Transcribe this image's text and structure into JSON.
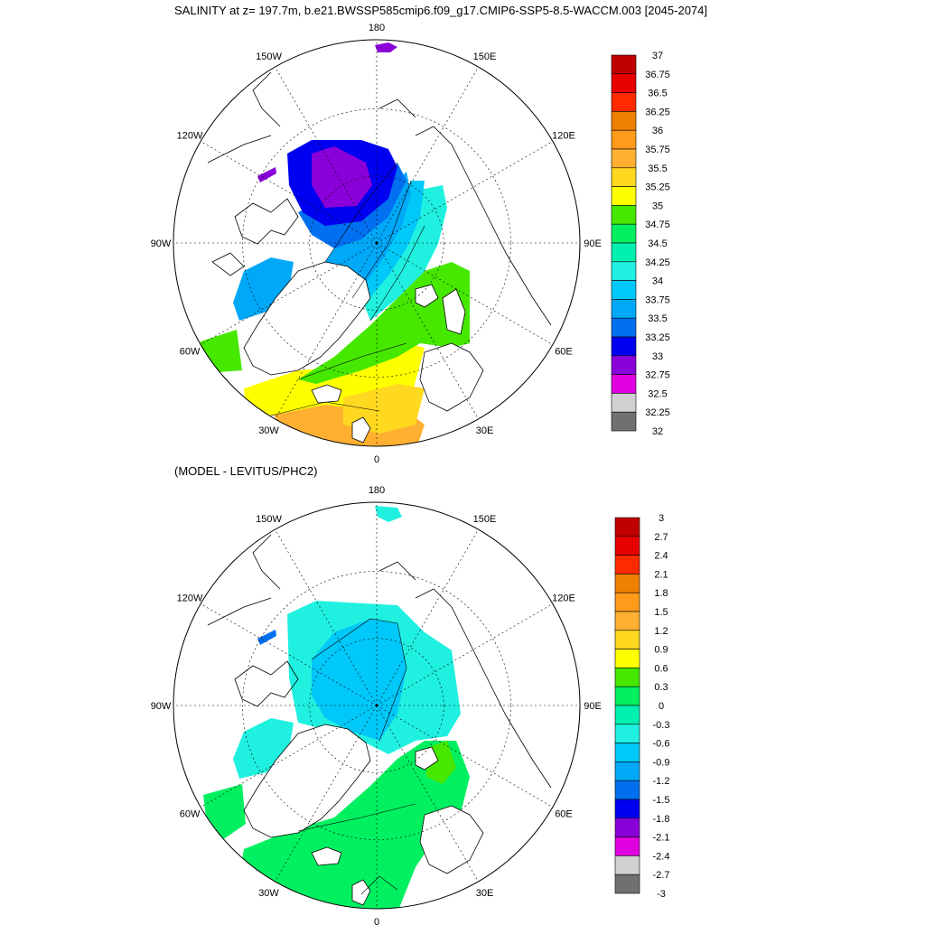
{
  "top_title": "SALINITY at z= 197.7m, b.e21.BWSSP585cmip6.f09_g17.CMIP6-SSP5-8.5-WACCM.003 [2045-2074]",
  "bottom_title": "(MODEL - LEVITUS/PHC2)",
  "longitude_labels": [
    "180",
    "150E",
    "120E",
    "90E",
    "60E",
    "30E",
    "0",
    "30W",
    "60W",
    "90W",
    "120W",
    "150W"
  ],
  "maps": [
    {
      "name": "model-salinity",
      "colorbar": {
        "levels": [
          "37",
          "36.75",
          "36.5",
          "36.25",
          "36",
          "35.75",
          "35.5",
          "35.25",
          "35",
          "34.75",
          "34.5",
          "34.25",
          "34",
          "33.75",
          "33.5",
          "33.25",
          "33",
          "32.75",
          "32.5",
          "32.25",
          "32"
        ],
        "colors": [
          "#c00000",
          "#e80000",
          "#ff2a00",
          "#f08000",
          "#ff9a1a",
          "#ffb030",
          "#ffd820",
          "#ffff00",
          "#46e800",
          "#00f060",
          "#00f0b0",
          "#20f0e0",
          "#00c8f8",
          "#00a8f8",
          "#0070f0",
          "#0000f0",
          "#8a00d8",
          "#e000e0",
          "#d0d0d0",
          "#707070"
        ]
      }
    },
    {
      "name": "model-minus-levitus",
      "colorbar": {
        "levels": [
          "3",
          "2.7",
          "2.4",
          "2.1",
          "1.8",
          "1.5",
          "1.2",
          "0.9",
          "0.6",
          "0.3",
          "0",
          "-0.3",
          "-0.6",
          "-0.9",
          "-1.2",
          "-1.5",
          "-1.8",
          "-2.1",
          "-2.4",
          "-2.7",
          "-3"
        ],
        "colors": [
          "#c00000",
          "#e80000",
          "#ff2a00",
          "#f08000",
          "#ff9a1a",
          "#ffb030",
          "#ffd820",
          "#ffff00",
          "#46e800",
          "#00f060",
          "#00f0b0",
          "#20f0e0",
          "#00c8f8",
          "#00a8f8",
          "#0070f0",
          "#0000f0",
          "#8a00d8",
          "#e000e0",
          "#d0d0d0",
          "#707070"
        ]
      }
    }
  ]
}
